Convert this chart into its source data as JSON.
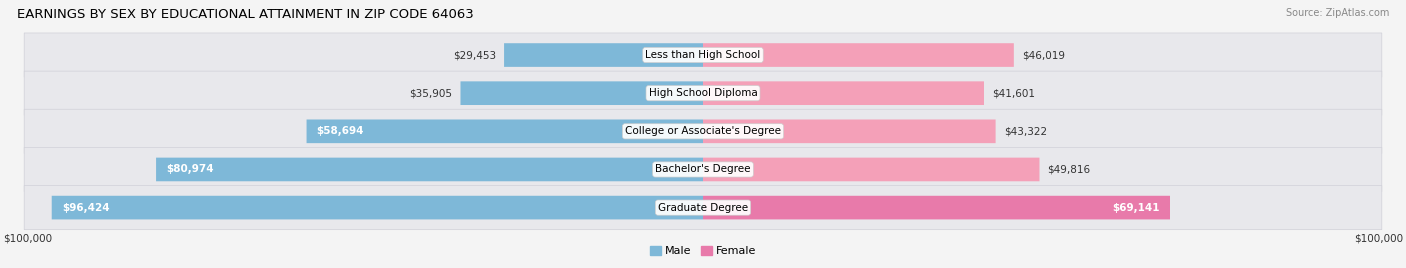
{
  "title": "EARNINGS BY SEX BY EDUCATIONAL ATTAINMENT IN ZIP CODE 64063",
  "source": "Source: ZipAtlas.com",
  "categories": [
    "Less than High School",
    "High School Diploma",
    "College or Associate's Degree",
    "Bachelor's Degree",
    "Graduate Degree"
  ],
  "male_values": [
    29453,
    35905,
    58694,
    80974,
    96424
  ],
  "female_values": [
    46019,
    41601,
    43322,
    49816,
    69141
  ],
  "max_value": 100000,
  "male_color": "#7eb8d8",
  "female_color": "#f4a0b8",
  "female_color_dark": "#e87aaa",
  "background_color": "#f4f4f4",
  "row_bg_color": "#e4e4e8",
  "row_bg_color_alt": "#eaeaee",
  "title_fontsize": 9.5,
  "label_fontsize": 8.0,
  "bar_height": 0.62
}
